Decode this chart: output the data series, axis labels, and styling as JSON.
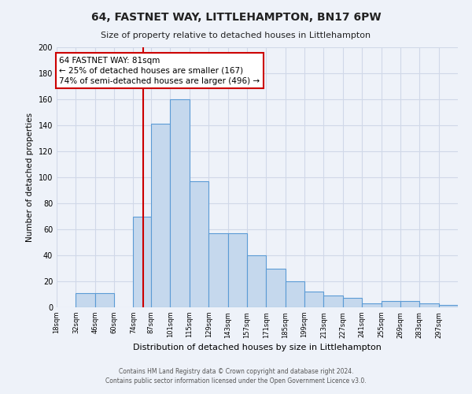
{
  "title": "64, FASTNET WAY, LITTLEHAMPTON, BN17 6PW",
  "subtitle": "Size of property relative to detached houses in Littlehampton",
  "xlabel": "Distribution of detached houses by size in Littlehampton",
  "ylabel": "Number of detached properties",
  "tick_labels": [
    "18sqm",
    "32sqm",
    "46sqm",
    "60sqm",
    "74sqm",
    "87sqm",
    "101sqm",
    "115sqm",
    "129sqm",
    "143sqm",
    "157sqm",
    "171sqm",
    "185sqm",
    "199sqm",
    "213sqm",
    "227sqm",
    "241sqm",
    "255sqm",
    "269sqm",
    "283sqm",
    "297sqm"
  ],
  "tick_positions": [
    18,
    32,
    46,
    60,
    74,
    87,
    101,
    115,
    129,
    143,
    157,
    171,
    185,
    199,
    213,
    227,
    241,
    255,
    269,
    283,
    297
  ],
  "bar_heights": [
    0,
    11,
    11,
    0,
    70,
    141,
    160,
    97,
    57,
    57,
    40,
    30,
    20,
    12,
    9,
    7,
    3,
    5,
    5,
    3,
    2
  ],
  "ylim": [
    0,
    200
  ],
  "yticks": [
    0,
    20,
    40,
    60,
    80,
    100,
    120,
    140,
    160,
    180,
    200
  ],
  "bar_color": "#c5d8ed",
  "bar_edge_color": "#5b9bd5",
  "grid_color": "#d0d8e8",
  "bg_color": "#eef2f9",
  "vline_x": 81,
  "vline_color": "#cc0000",
  "annotation_text": "64 FASTNET WAY: 81sqm\n← 25% of detached houses are smaller (167)\n74% of semi-detached houses are larger (496) →",
  "annotation_box_color": "#ffffff",
  "annotation_box_edge": "#cc0000",
  "footer1": "Contains HM Land Registry data © Crown copyright and database right 2024.",
  "footer2": "Contains public sector information licensed under the Open Government Licence v3.0."
}
